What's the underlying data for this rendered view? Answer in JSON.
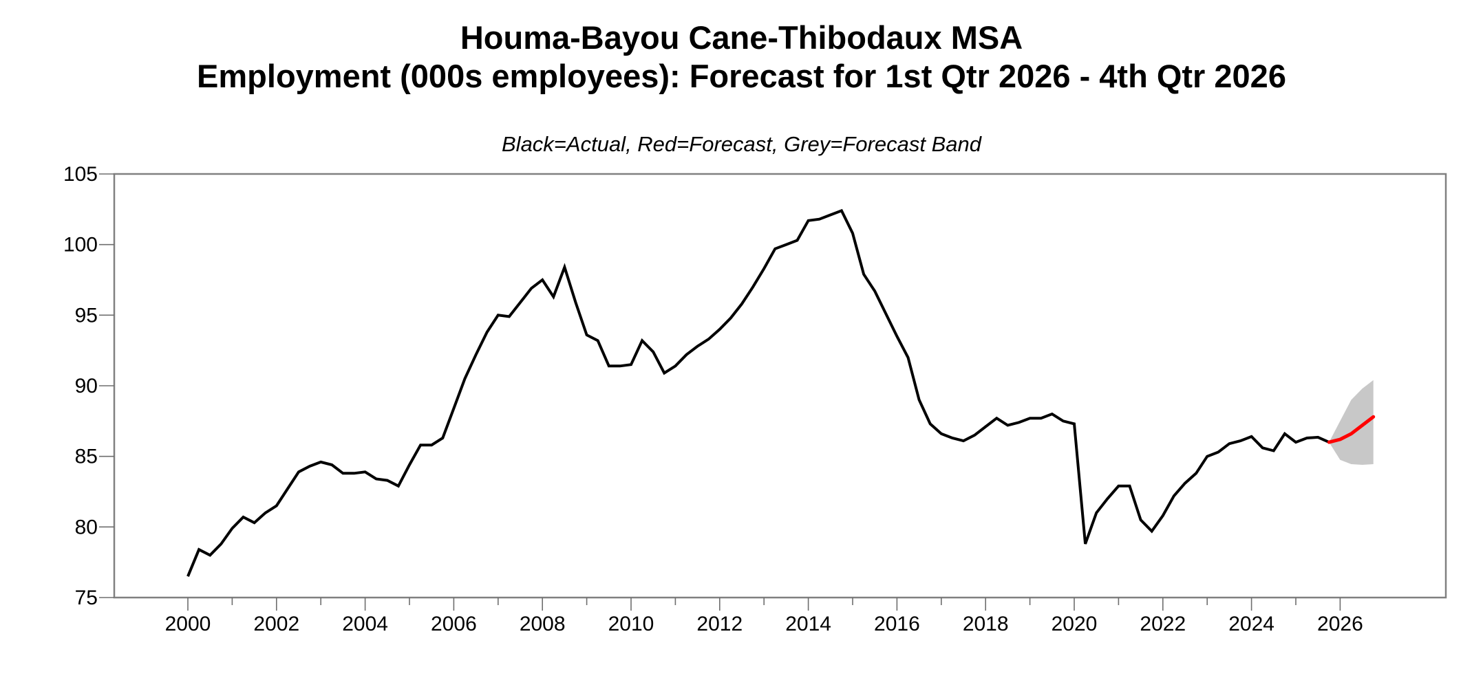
{
  "title": {
    "line1": "Houma-Bayou Cane-Thibodaux MSA",
    "line2": "Employment (000s employees): Forecast for 1st Qtr 2026 - 4th Qtr 2026",
    "subtitle": "Black=Actual, Red=Forecast, Grey=Forecast Band"
  },
  "chart_data": {
    "type": "line",
    "title": "Houma-Bayou Cane-Thibodaux MSA",
    "subtitle": "Employment (000s employees): Forecast for 1st Qtr 2026 - 4th Qtr 2026",
    "legend_note": "Black=Actual, Red=Forecast, Grey=Forecast Band",
    "unit": "thousands of employees",
    "frequency": "quarterly",
    "grid": false,
    "y_axis": {
      "min": 75,
      "max": 105,
      "tick_step": 5,
      "tick_labels": [
        "75",
        "80",
        "85",
        "90",
        "95",
        "100",
        "105"
      ]
    },
    "x_axis": {
      "tick_year_start": 2000,
      "tick_year_end": 2026,
      "label_years": [
        "2000",
        "2002",
        "2004",
        "2006",
        "2008",
        "2010",
        "2012",
        "2014",
        "2016",
        "2018",
        "2020",
        "2022",
        "2024",
        "2026"
      ]
    },
    "series": [
      {
        "name": "Actual",
        "color": "#000000",
        "start_year": 2000,
        "start_quarter": 1,
        "values": [
          76.5,
          78.4,
          78.0,
          78.8,
          79.9,
          80.7,
          80.3,
          81.0,
          81.5,
          82.7,
          83.9,
          84.3,
          84.6,
          84.4,
          83.8,
          83.8,
          83.9,
          83.4,
          83.3,
          82.9,
          84.4,
          85.8,
          85.8,
          86.3,
          88.4,
          90.5,
          92.2,
          93.8,
          95.0,
          94.9,
          95.9,
          96.9,
          97.5,
          96.3,
          98.4,
          95.9,
          93.6,
          93.2,
          91.4,
          91.4,
          91.5,
          93.2,
          92.4,
          90.9,
          91.4,
          92.2,
          92.8,
          93.3,
          94.0,
          94.8,
          95.8,
          97.0,
          98.3,
          99.7,
          100.0,
          100.3,
          101.7,
          101.8,
          102.1,
          102.4,
          100.8,
          97.9,
          96.7,
          95.1,
          93.5,
          92.0,
          89.0,
          87.3,
          86.6,
          86.3,
          86.1,
          86.5,
          87.1,
          87.7,
          87.2,
          87.4,
          87.7,
          87.7,
          88.0,
          87.5,
          87.3,
          78.8,
          81.0,
          82.0,
          82.9,
          82.9,
          80.5,
          79.7,
          80.8,
          82.2,
          83.1,
          83.8,
          85.0,
          85.3,
          85.9,
          86.1,
          86.4,
          85.6,
          85.4,
          86.6,
          86.0,
          86.3,
          86.35,
          86.0
        ]
      },
      {
        "name": "Forecast",
        "color": "#ff0000",
        "start_year": 2025,
        "start_quarter": 4,
        "values": [
          86.0,
          86.2,
          86.6,
          87.2,
          87.8
        ]
      }
    ],
    "forecast_band": {
      "name": "Forecast Band",
      "color": "#c8c8c8",
      "start_year": 2025,
      "start_quarter": 4,
      "upper": [
        86.0,
        87.5,
        89.0,
        89.8,
        90.4
      ],
      "lower": [
        86.0,
        84.75,
        84.45,
        84.4,
        84.45
      ]
    },
    "colors": {
      "actual": "#000000",
      "forecast": "#ff0000",
      "band": "#c8c8c8",
      "frame": "#808080",
      "ticks": "#6e6e6e",
      "text": "#000000"
    }
  }
}
